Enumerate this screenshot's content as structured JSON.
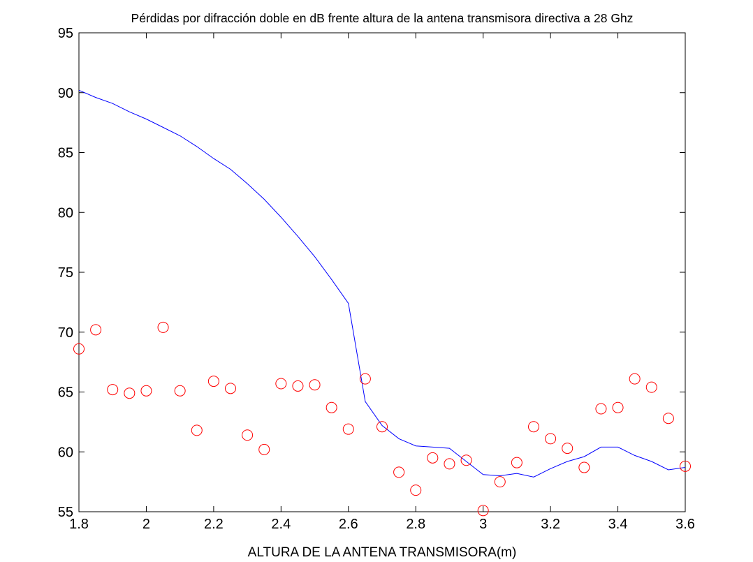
{
  "chart_data": {
    "type": "line",
    "title": "Pérdidas por difracción doble en dB frente altura de la antena transmisora directiva a 28 Ghz",
    "xlabel": "ALTURA DE LA ANTENA TRANSMISORA(m)",
    "ylabel": "",
    "xlim": [
      1.8,
      3.6
    ],
    "ylim": [
      55,
      95
    ],
    "xticks": [
      1.8,
      2,
      2.2,
      2.4,
      2.6,
      2.8,
      3,
      3.2,
      3.4,
      3.6
    ],
    "xtick_labels": [
      "1.8",
      "2",
      "2.2",
      "2.4",
      "2.6",
      "2.8",
      "3",
      "3.2",
      "3.4",
      "3.6"
    ],
    "yticks": [
      55,
      60,
      65,
      70,
      75,
      80,
      85,
      90,
      95
    ],
    "ytick_labels": [
      "55",
      "60",
      "65",
      "70",
      "75",
      "80",
      "85",
      "90",
      "95"
    ],
    "grid": false,
    "series": [
      {
        "style": "line",
        "color": "#0000ff",
        "x": [
          1.8,
          1.85,
          1.9,
          1.95,
          2.0,
          2.05,
          2.1,
          2.15,
          2.2,
          2.25,
          2.3,
          2.35,
          2.4,
          2.45,
          2.5,
          2.55,
          2.6,
          2.65,
          2.7,
          2.75,
          2.8,
          2.85,
          2.9,
          2.95,
          3.0,
          3.05,
          3.1,
          3.15,
          3.2,
          3.25,
          3.3,
          3.35,
          3.4,
          3.45,
          3.5,
          3.55,
          3.6
        ],
        "y": [
          90.2,
          89.6,
          89.1,
          88.4,
          87.8,
          87.1,
          86.4,
          85.5,
          84.5,
          83.6,
          82.4,
          81.1,
          79.6,
          78.0,
          76.3,
          74.4,
          72.4,
          64.2,
          62.2,
          61.1,
          60.5,
          60.4,
          60.3,
          59.2,
          58.1,
          58.0,
          58.2,
          57.9,
          58.6,
          59.2,
          59.6,
          60.4,
          60.4,
          59.7,
          59.2,
          58.5,
          58.7
        ]
      },
      {
        "style": "scatter",
        "marker": "circle",
        "color": "#ff0000",
        "x": [
          1.8,
          1.85,
          1.9,
          1.95,
          2.0,
          2.05,
          2.1,
          2.15,
          2.2,
          2.25,
          2.3,
          2.35,
          2.4,
          2.45,
          2.5,
          2.55,
          2.6,
          2.65,
          2.7,
          2.75,
          2.8,
          2.85,
          2.9,
          2.95,
          3.0,
          3.05,
          3.1,
          3.15,
          3.2,
          3.25,
          3.3,
          3.35,
          3.4,
          3.45,
          3.5,
          3.55,
          3.6
        ],
        "y": [
          68.6,
          70.2,
          65.2,
          64.9,
          65.1,
          70.4,
          65.1,
          61.8,
          65.9,
          65.3,
          61.4,
          60.2,
          65.7,
          65.5,
          65.6,
          63.7,
          61.9,
          66.1,
          62.1,
          58.3,
          56.8,
          59.5,
          59.0,
          59.3,
          55.1,
          57.5,
          59.1,
          62.1,
          61.1,
          60.3,
          58.7,
          63.6,
          63.7,
          66.1,
          65.4,
          62.8,
          58.8
        ]
      }
    ]
  }
}
